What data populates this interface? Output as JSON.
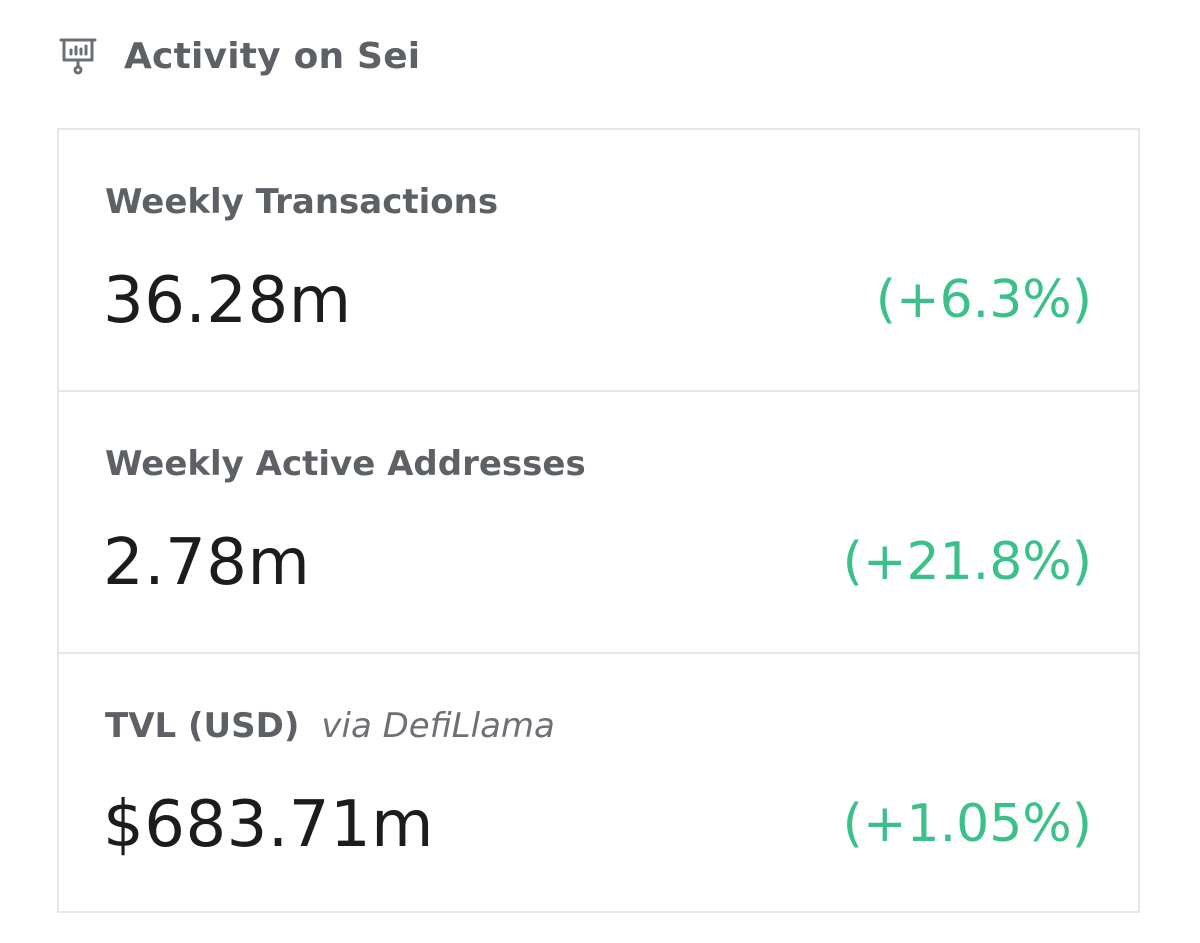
{
  "header": {
    "icon": "presentation-chart-icon",
    "title": "Activity on Sei"
  },
  "metrics": [
    {
      "label": "Weekly Transactions",
      "value": "36.28m",
      "change": "(+6.3%)"
    },
    {
      "label": "Weekly Active Addresses",
      "value": "2.78m",
      "change": "(+21.8%)"
    },
    {
      "label": "TVL (USD)",
      "source": "via DefiLlama",
      "value": "$683.71m",
      "change": "(+1.05%)"
    }
  ],
  "colors": {
    "label": "#5d6166",
    "value": "#1b1c1e",
    "positive_change": "#3cc08a",
    "border": "#e6e7e9"
  }
}
